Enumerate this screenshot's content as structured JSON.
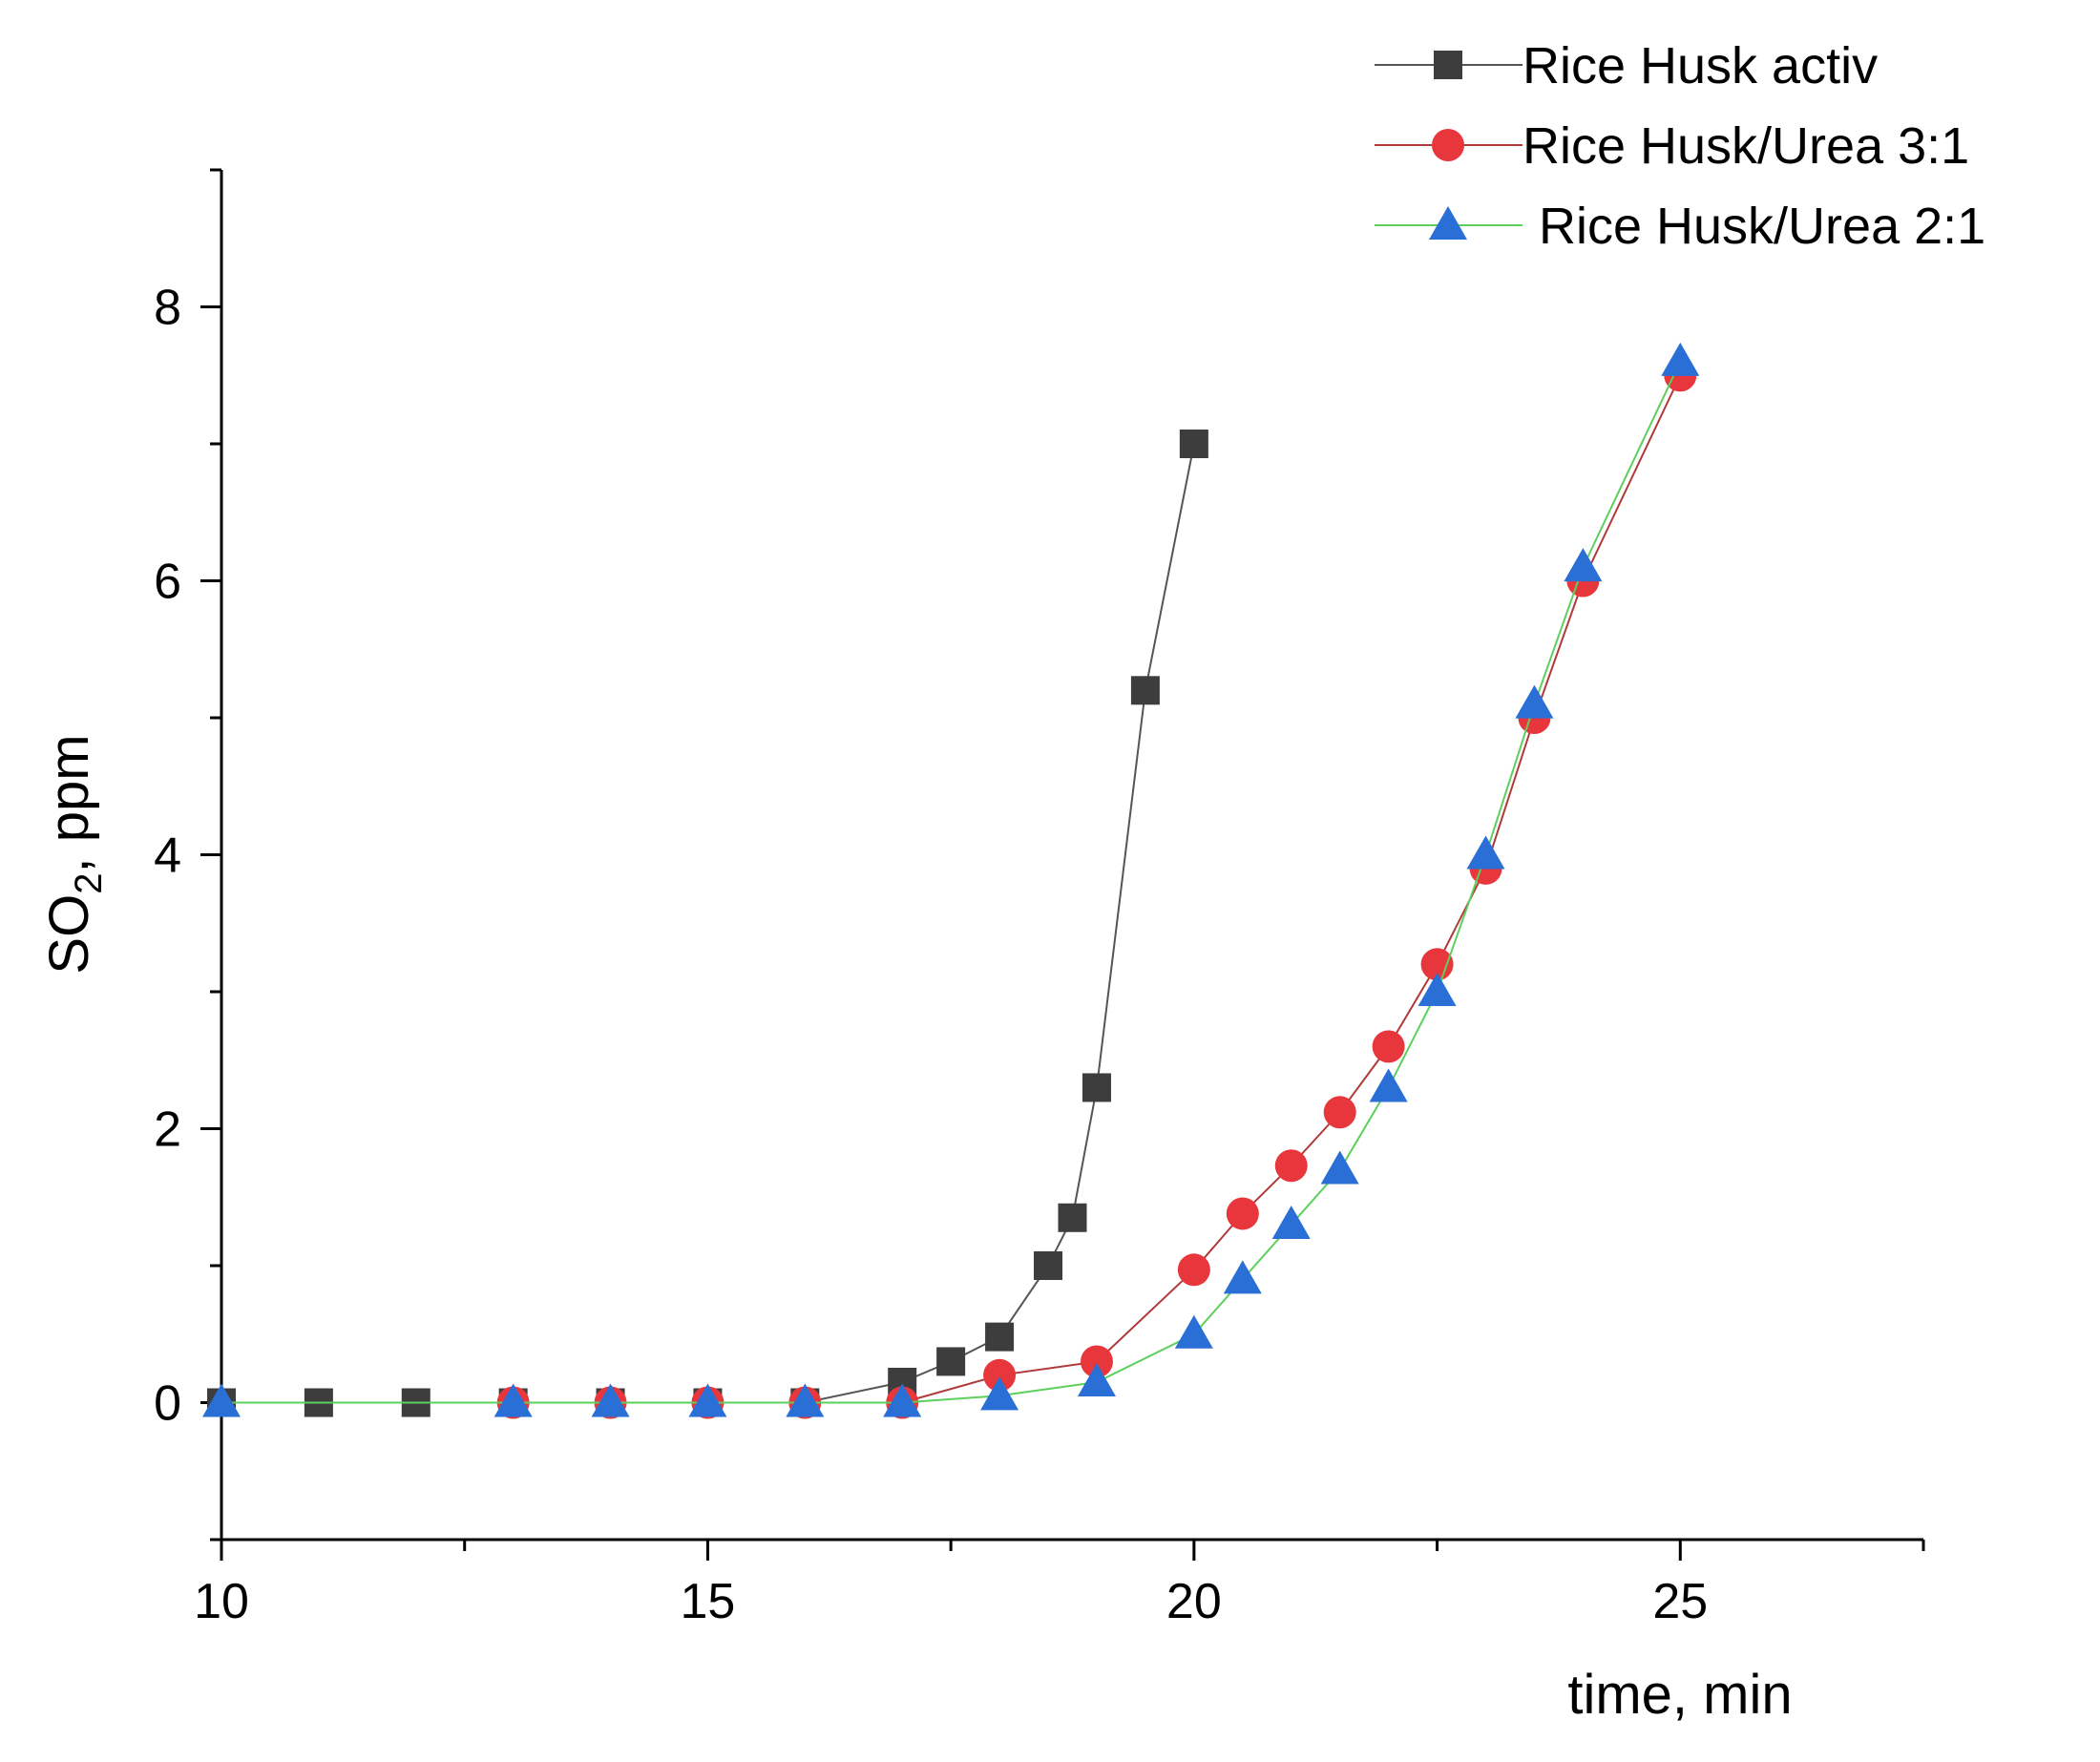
{
  "chart_data": {
    "type": "line",
    "title": "",
    "xlabel": "time, min",
    "ylabel": {
      "main": "SO",
      "subscript": "2",
      "suffix": ", ppm"
    },
    "xlim": [
      10,
      27.5
    ],
    "ylim": [
      -1,
      9
    ],
    "xticks": [
      10,
      15,
      20,
      25
    ],
    "yticks": [
      0,
      2,
      4,
      6,
      8
    ],
    "xticks_minor": [
      12.5,
      17.5,
      22.5,
      27.5
    ],
    "yticks_minor": [
      -1,
      1,
      3,
      5,
      7,
      9
    ],
    "grid": false,
    "legend_position": "top-right",
    "series": [
      {
        "name": "Rice Husk activ",
        "marker": "square",
        "line_color": "#555555",
        "marker_color": "#3d3d3d",
        "x": [
          10,
          11,
          12,
          13,
          14,
          15,
          16,
          17,
          17.5,
          18,
          18.5,
          18.75,
          19,
          19.5,
          20
        ],
        "y": [
          0,
          0,
          0,
          0,
          0,
          0,
          0,
          0.15,
          0.3,
          0.48,
          1.0,
          1.35,
          2.3,
          5.2,
          7.0
        ]
      },
      {
        "name": "Rice Husk/Urea 3:1",
        "marker": "circle",
        "line_color": "#b03a3a",
        "marker_color": "#e8373c",
        "x": [
          13,
          14,
          15,
          16,
          17,
          18,
          19,
          20,
          20.5,
          21,
          21.5,
          22,
          22.5,
          23,
          23.5,
          24,
          25
        ],
        "y": [
          0,
          0,
          0,
          0,
          0,
          0.2,
          0.3,
          0.97,
          1.38,
          1.73,
          2.12,
          2.6,
          3.2,
          3.9,
          5.0,
          6.0,
          7.5
        ]
      },
      {
        "name": "Rice Husk/Urea 2:1",
        "marker": "triangle",
        "line_color": "#5ccf5c",
        "marker_color": "#2a6fd6",
        "x": [
          10,
          13,
          14,
          15,
          16,
          17,
          18,
          19,
          20,
          20.5,
          21,
          21.5,
          22,
          22.5,
          23,
          23.5,
          24,
          25
        ],
        "y": [
          0,
          0,
          0,
          0,
          0,
          0,
          0.05,
          0.15,
          0.5,
          0.9,
          1.3,
          1.7,
          2.3,
          3.0,
          4.0,
          5.1,
          6.1,
          7.6
        ]
      }
    ]
  }
}
